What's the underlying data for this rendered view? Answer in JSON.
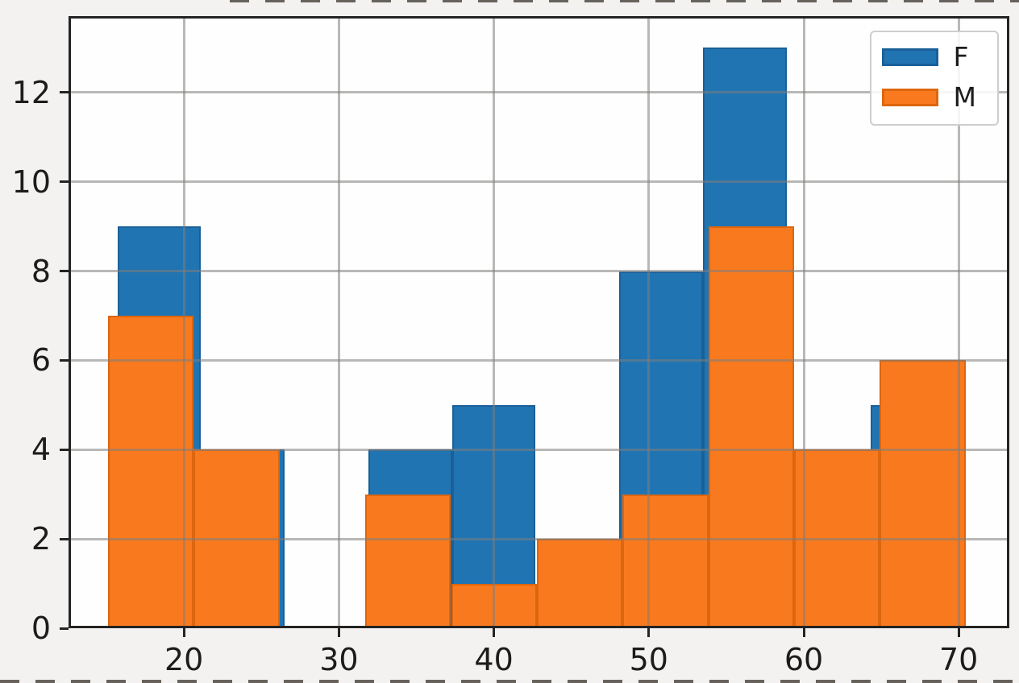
{
  "chart_data": {
    "type": "histogram",
    "title": "",
    "xlabel": "",
    "ylabel": "",
    "grid": true,
    "xlim": [
      12.55,
      73.27
    ],
    "ylim": [
      0,
      13.71
    ],
    "x_tick_labels": [
      "20",
      "30",
      "40",
      "50",
      "60",
      "70"
    ],
    "x_tick_values": [
      20,
      30,
      40,
      50,
      60,
      70
    ],
    "y_tick_labels": [
      "0",
      "2",
      "4",
      "6",
      "8",
      "10",
      "12"
    ],
    "y_tick_values": [
      0,
      2,
      4,
      6,
      8,
      10,
      12
    ],
    "legend": {
      "position": "upper right",
      "entries": [
        "F",
        "M"
      ]
    },
    "series": [
      {
        "name": "F",
        "color": "#2174b2",
        "edge_color": "#1a6098",
        "bin_start": 15.7,
        "bin_width": 5.4,
        "bin_edges": [
          15.7,
          21.1,
          26.5,
          31.9,
          37.3,
          42.7,
          48.1,
          53.5,
          58.9,
          64.3,
          69.7
        ],
        "counts": [
          9,
          4,
          0,
          4,
          5,
          0,
          8,
          13,
          0,
          5
        ]
      },
      {
        "name": "M",
        "color": "#f97a1e",
        "edge_color": "#dd660e",
        "bin_start": 15.1,
        "bin_width": 5.535,
        "bin_edges": [
          15.1,
          20.64,
          26.17,
          31.71,
          37.24,
          42.78,
          48.31,
          53.85,
          59.38,
          64.92,
          70.45
        ],
        "counts": [
          7,
          4,
          0,
          3,
          1,
          2,
          3,
          9,
          4,
          6
        ]
      }
    ]
  }
}
